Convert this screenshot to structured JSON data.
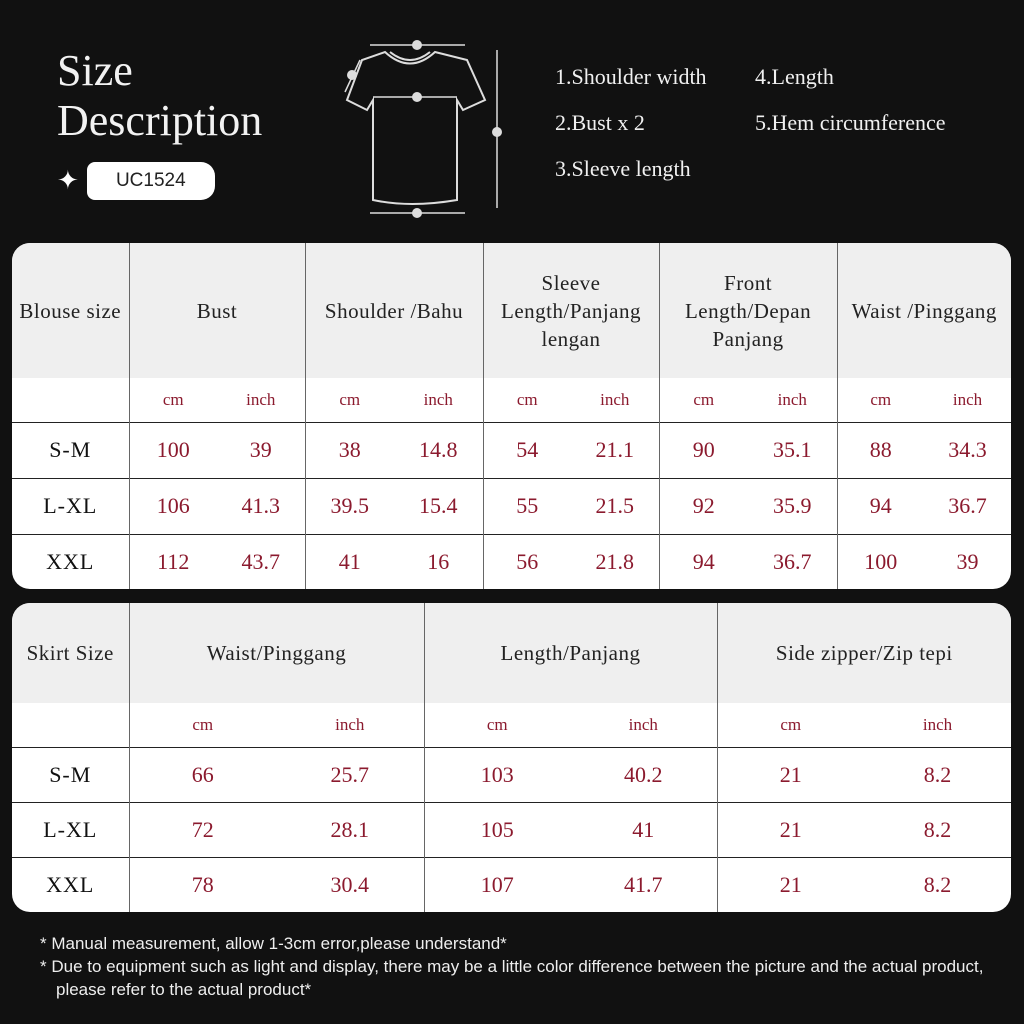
{
  "title": {
    "line1": "Size",
    "line2": "Description"
  },
  "product_code": "UC1524",
  "legend": [
    "1.Shoulder width",
    "2.Bust x 2",
    "3.Sleeve length",
    "4.Length",
    "5.Hem circumference"
  ],
  "colors": {
    "value": "#8b1a2e",
    "header_bg": "#efefef",
    "background": "#111111"
  },
  "blouse": {
    "headers": [
      "Blouse size",
      "Bust",
      "Shoulder /Bahu",
      "Sleeve Length/Panjang lengan",
      "Front Length/Depan Panjang",
      "Waist /Pinggang"
    ],
    "units": [
      "cm",
      "inch"
    ],
    "rows": [
      {
        "size": "S-M",
        "values": [
          "100",
          "39",
          "38",
          "14.8",
          "54",
          "21.1",
          "90",
          "35.1",
          "88",
          "34.3"
        ]
      },
      {
        "size": "L-XL",
        "values": [
          "106",
          "41.3",
          "39.5",
          "15.4",
          "55",
          "21.5",
          "92",
          "35.9",
          "94",
          "36.7"
        ]
      },
      {
        "size": "XXL",
        "values": [
          "112",
          "43.7",
          "41",
          "16",
          "56",
          "21.8",
          "94",
          "36.7",
          "100",
          "39"
        ]
      }
    ]
  },
  "skirt": {
    "headers": [
      "Skirt Size",
      "Waist/Pinggang",
      "Length/Panjang",
      "Side zipper/Zip tepi"
    ],
    "units": [
      "cm",
      "inch"
    ],
    "rows": [
      {
        "size": "S-M",
        "values": [
          "66",
          "25.7",
          "103",
          "40.2",
          "21",
          "8.2"
        ]
      },
      {
        "size": "L-XL",
        "values": [
          "72",
          "28.1",
          "105",
          "41",
          "21",
          "8.2"
        ]
      },
      {
        "size": "XXL",
        "values": [
          "78",
          "30.4",
          "107",
          "41.7",
          "21",
          "8.2"
        ]
      }
    ]
  },
  "notes": [
    "*  Manual measurement, allow 1-3cm error,please understand*",
    "*  Due to equipment such as light and display, there may be a little color difference  between the picture and the actual product, please refer to the actual product*"
  ]
}
